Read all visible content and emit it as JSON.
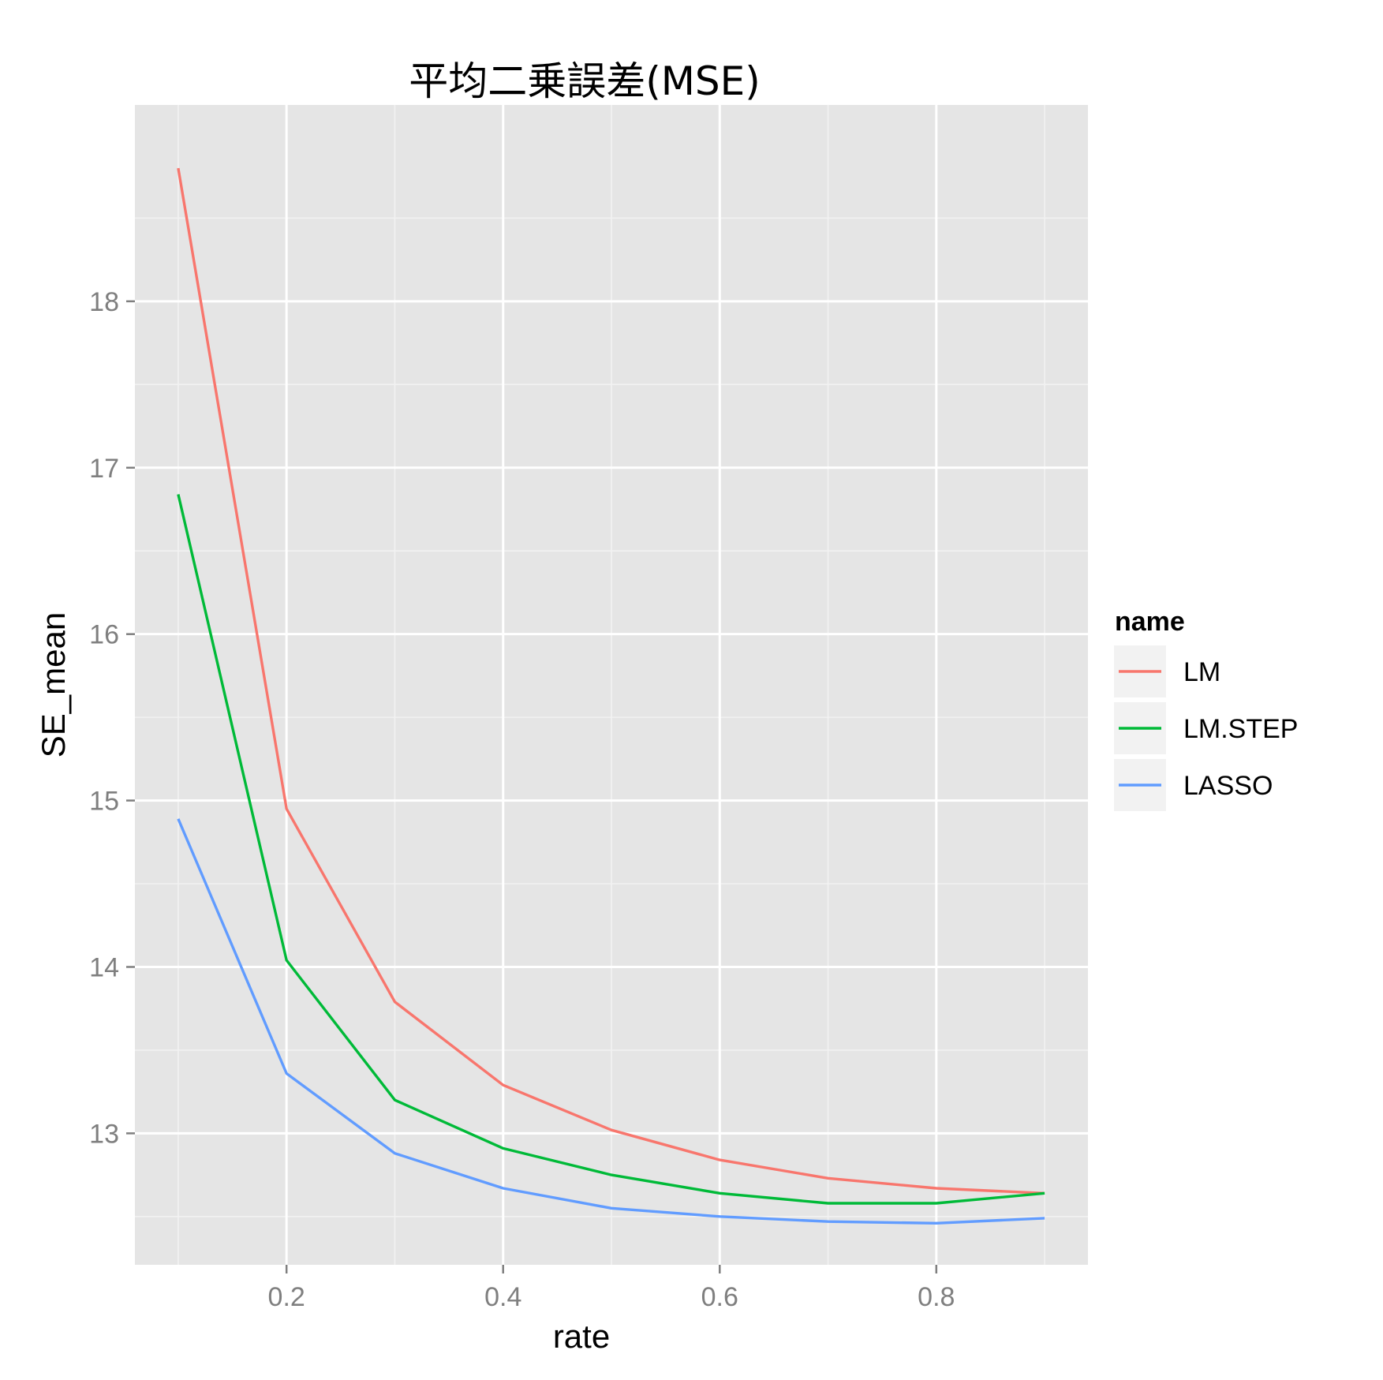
{
  "chart_data": {
    "type": "line",
    "title": "平均二乗誤差(MSE)",
    "xlabel": "rate",
    "ylabel": "SE_mean",
    "x": [
      0.1,
      0.2,
      0.3,
      0.4,
      0.5,
      0.6,
      0.7,
      0.8,
      0.9
    ],
    "xlim": [
      0.06,
      0.94
    ],
    "ylim": [
      12.21,
      19.18
    ],
    "x_ticks": [
      {
        "value": 0.2,
        "label": "0.2"
      },
      {
        "value": 0.4,
        "label": "0.4"
      },
      {
        "value": 0.6,
        "label": "0.6"
      },
      {
        "value": 0.8,
        "label": "0.8"
      }
    ],
    "y_ticks": [
      {
        "value": 13,
        "label": "13"
      },
      {
        "value": 14,
        "label": "14"
      },
      {
        "value": 15,
        "label": "15"
      },
      {
        "value": 16,
        "label": "16"
      },
      {
        "value": 17,
        "label": "17"
      },
      {
        "value": 18,
        "label": "18"
      }
    ],
    "grid": true,
    "background": "#e5e5e5",
    "legend": {
      "title": "name",
      "position": "right"
    },
    "series": [
      {
        "name": "LM",
        "color": "#f8766d",
        "values": [
          18.8,
          14.95,
          13.79,
          13.29,
          13.02,
          12.84,
          12.73,
          12.67,
          12.64
        ]
      },
      {
        "name": "LM.STEP",
        "color": "#00ba38",
        "values": [
          16.84,
          14.04,
          13.2,
          12.91,
          12.75,
          12.64,
          12.58,
          12.58,
          12.64
        ]
      },
      {
        "name": "LASSO",
        "color": "#619cff",
        "values": [
          14.89,
          13.36,
          12.88,
          12.67,
          12.55,
          12.5,
          12.47,
          12.46,
          12.49
        ]
      }
    ]
  }
}
